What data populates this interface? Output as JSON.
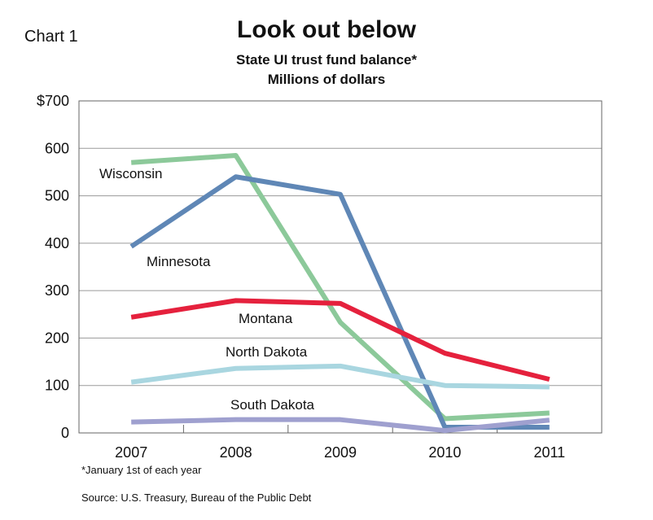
{
  "chart_label": "Chart 1",
  "footnote": "*January 1st of each year",
  "source": "Source: U.S. Treasury, Bureau of the Public Debt",
  "chart_data": {
    "type": "line",
    "title": "Look out below",
    "subtitle": "State UI trust fund balance*",
    "units": "Millions of dollars",
    "x": [
      "2007",
      "2008",
      "2009",
      "2010",
      "2011"
    ],
    "ylim": [
      0,
      700
    ],
    "yticks": [
      0,
      100,
      200,
      300,
      400,
      500,
      600,
      700
    ],
    "ytick_labels": [
      "0",
      "100",
      "200",
      "300",
      "400",
      "500",
      "600",
      "$700"
    ],
    "grid": true,
    "series": [
      {
        "name": "Wisconsin",
        "color": "#8cc99a",
        "values": [
          570,
          585,
          233,
          30,
          42
        ]
      },
      {
        "name": "Minnesota",
        "color": "#5f87b6",
        "values": [
          393,
          540,
          503,
          12,
          12
        ]
      },
      {
        "name": "Montana",
        "color": "#e5213d",
        "values": [
          244,
          279,
          273,
          168,
          113
        ]
      },
      {
        "name": "North Dakota",
        "color": "#a9d6e0",
        "values": [
          107,
          136,
          141,
          100,
          97
        ]
      },
      {
        "name": "South Dakota",
        "color": "#9fa0cf",
        "values": [
          23,
          28,
          28,
          5,
          27
        ]
      }
    ]
  }
}
